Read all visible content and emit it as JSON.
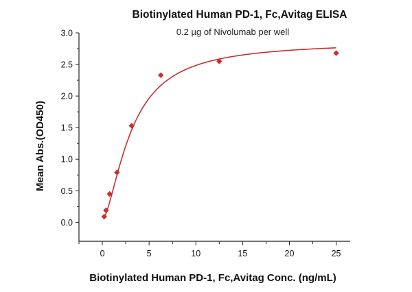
{
  "chart_data": {
    "type": "scatter",
    "title": "Biotinylated Human PD-1, Fc,Avitag ELISA",
    "subtitle": "0.2 µg of Nivolumab per well",
    "xlabel": "Biotinylated Human PD-1, Fc,Avitag Conc. (ng/mL)",
    "ylabel": "Mean Abs.(OD450)",
    "xlim": [
      -2.5,
      26.5
    ],
    "ylim": [
      -0.3,
      3.0
    ],
    "x_ticks": [
      0,
      5,
      10,
      15,
      20,
      25
    ],
    "x_tick_labels": [
      "0",
      "5",
      "10",
      "15",
      "20",
      "25"
    ],
    "y_ticks": [
      0.0,
      0.5,
      1.0,
      1.5,
      2.0,
      2.5,
      3.0
    ],
    "y_tick_labels": [
      "0.0",
      "0.5",
      "1.0",
      "1.5",
      "2.0",
      "2.5",
      "3.0"
    ],
    "grid": false,
    "legend": "none",
    "marker": "diamond",
    "color": "#c8302c",
    "series": [
      {
        "x": [
          0.195,
          0.39,
          0.78,
          1.56,
          3.125,
          6.25,
          12.5,
          25
        ],
        "y": [
          0.09,
          0.19,
          0.45,
          0.79,
          1.53,
          2.33,
          2.55,
          2.68
        ]
      }
    ],
    "fit": {
      "type": "4PL",
      "bottom": 0.04,
      "top": 2.86,
      "ec50": 3.1,
      "hill": 1.6
    }
  }
}
